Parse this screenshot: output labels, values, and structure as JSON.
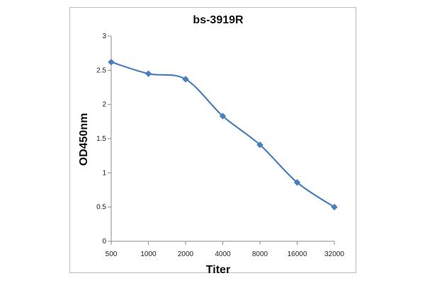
{
  "chart_data": {
    "type": "line",
    "title": "bs-3919R",
    "xlabel": "Titer",
    "ylabel": "OD450nm",
    "categories": [
      "500",
      "1000",
      "2000",
      "4000",
      "8000",
      "16000",
      "32000"
    ],
    "y_ticks": [
      "0",
      "0.5",
      "1",
      "1.5",
      "2",
      "2.5",
      "3"
    ],
    "ylim": [
      0,
      3
    ],
    "grid": false,
    "legend": "none",
    "series": [
      {
        "values": [
          2.62,
          2.45,
          2.37,
          1.83,
          1.41,
          0.86,
          0.5
        ]
      }
    ]
  },
  "colors": {
    "series": "#4a7ebb",
    "axis": "#8c8c8c",
    "frame": "#bdbdbd"
  }
}
